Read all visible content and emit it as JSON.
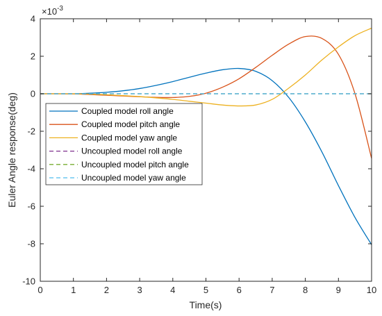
{
  "chart_data": {
    "type": "line",
    "title": "",
    "xlabel": "Time(s)",
    "ylabel": "Euler Angle response(deg)",
    "y_multiplier_label": "×10",
    "y_multiplier_exponent": "-3",
    "xlim": [
      0,
      10
    ],
    "ylim": [
      -10,
      4
    ],
    "xticks": [
      0,
      1,
      2,
      3,
      4,
      5,
      6,
      7,
      8,
      9,
      10
    ],
    "yticks": [
      -10,
      -8,
      -6,
      -4,
      -2,
      0,
      2,
      4
    ],
    "grid": false,
    "legend_placement": "middle-left",
    "x": [
      0,
      0.5,
      1,
      1.5,
      2,
      2.5,
      3,
      3.5,
      4,
      4.5,
      5,
      5.5,
      6,
      6.5,
      7,
      7.5,
      8,
      8.5,
      9,
      9.5,
      10
    ],
    "series": [
      {
        "name": "Coupled model roll angle",
        "color": "#0072BD",
        "dash": "solid",
        "values": [
          0,
          0.0,
          0.0,
          0.03,
          0.08,
          0.16,
          0.28,
          0.45,
          0.65,
          0.88,
          1.1,
          1.28,
          1.35,
          1.2,
          0.7,
          -0.2,
          -1.5,
          -3.1,
          -4.9,
          -6.6,
          -8.05
        ]
      },
      {
        "name": "Coupled model pitch angle",
        "color": "#D95319",
        "dash": "solid",
        "values": [
          0,
          0.0,
          -0.01,
          -0.04,
          -0.08,
          -0.12,
          -0.16,
          -0.19,
          -0.2,
          -0.14,
          0.03,
          0.35,
          0.8,
          1.4,
          2.05,
          2.65,
          3.05,
          2.95,
          2.1,
          0.0,
          -3.45
        ]
      },
      {
        "name": "Coupled model yaw angle",
        "color": "#EDB120",
        "dash": "solid",
        "values": [
          0,
          0.0,
          0.0,
          -0.02,
          -0.05,
          -0.1,
          -0.15,
          -0.22,
          -0.3,
          -0.4,
          -0.5,
          -0.6,
          -0.65,
          -0.6,
          -0.3,
          0.3,
          1.0,
          1.8,
          2.5,
          3.1,
          3.5
        ]
      },
      {
        "name": "Uncoupled model roll angle",
        "color": "#7E2F8E",
        "dash": "dashed",
        "values": [
          0,
          0,
          0,
          0,
          0,
          0,
          0,
          0,
          0,
          0,
          0,
          0,
          0,
          0,
          0,
          0,
          0,
          0,
          0,
          0,
          0
        ]
      },
      {
        "name": "Uncoupled model pitch angle",
        "color": "#77AC30",
        "dash": "dashed",
        "values": [
          0,
          0,
          0,
          0,
          0,
          0,
          0,
          0,
          0,
          0,
          0,
          0,
          0,
          0,
          0,
          0,
          0,
          0,
          0,
          0,
          0
        ]
      },
      {
        "name": "Uncoupled model yaw angle",
        "color": "#4DBEEE",
        "dash": "dashed",
        "values": [
          0,
          0,
          0,
          0,
          0,
          0,
          0,
          0,
          0,
          0,
          0,
          0,
          0,
          0,
          0,
          0,
          0,
          0,
          0,
          0,
          0
        ]
      }
    ]
  }
}
